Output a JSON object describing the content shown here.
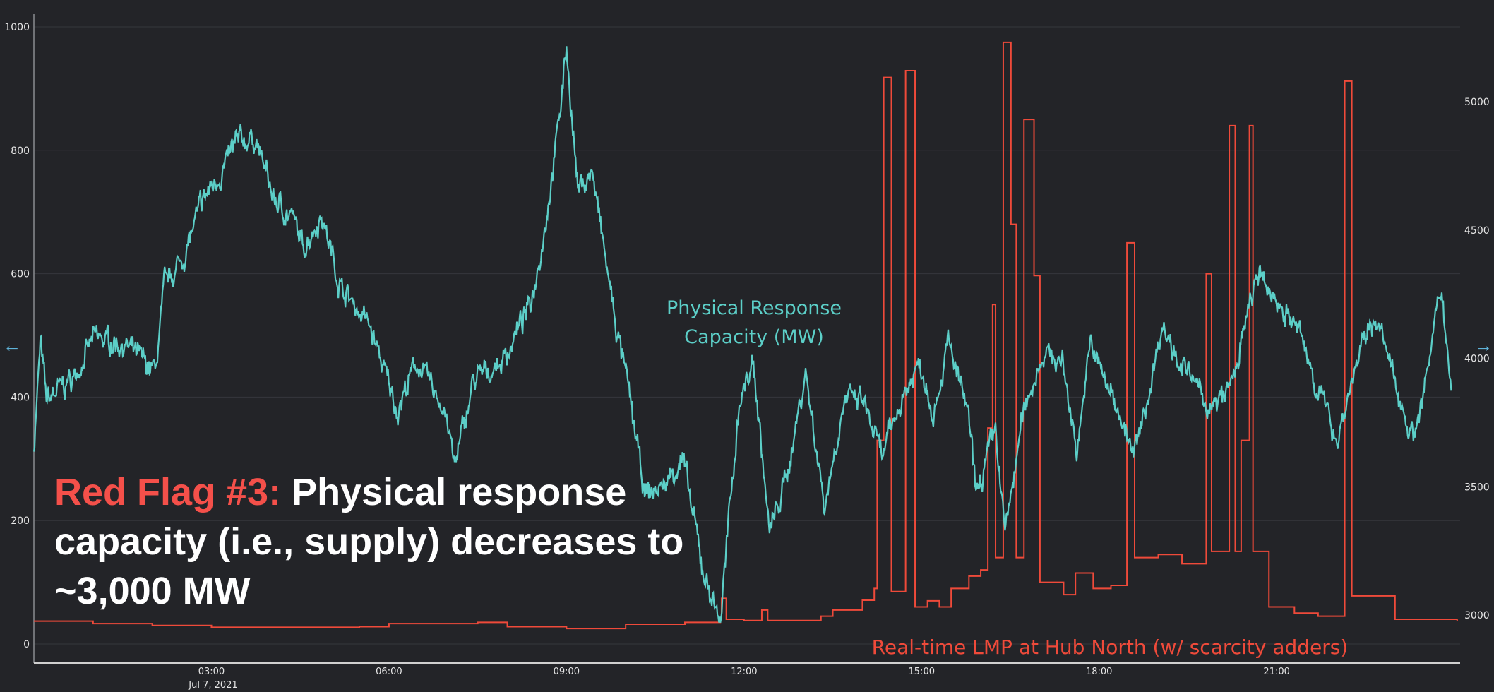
{
  "chart_data": {
    "type": "line",
    "title": "",
    "xlabel": "",
    "date_label": "Jul 7, 2021",
    "x_range_hours": [
      0,
      24.1
    ],
    "x_ticks": [
      {
        "h": 3,
        "label": "03:00"
      },
      {
        "h": 6,
        "label": "06:00"
      },
      {
        "h": 9,
        "label": "09:00"
      },
      {
        "h": 12,
        "label": "12:00"
      },
      {
        "h": 15,
        "label": "15:00"
      },
      {
        "h": 18,
        "label": "18:00"
      },
      {
        "h": 21,
        "label": "21:00"
      }
    ],
    "y_left": {
      "range": [
        0,
        1000
      ],
      "ticks": [
        "0",
        "200",
        "400",
        "600",
        "800",
        "1000"
      ],
      "tick_values": [
        0,
        200,
        400,
        600,
        800,
        1000
      ]
    },
    "y_right": {
      "range": [
        2880,
        5350
      ],
      "ticks": [
        "3000",
        "3500",
        "4000",
        "4500",
        "5000"
      ],
      "tick_values": [
        3000,
        3500,
        4000,
        4500,
        5000
      ]
    },
    "grid": true,
    "series": [
      {
        "name": "Physical Response Capacity (MW)",
        "axis": "right",
        "color": "#5ccfc8",
        "points": [
          [
            0,
            3650
          ],
          [
            0.11,
            4059
          ],
          [
            0.21,
            3836
          ],
          [
            0.69,
            3929
          ],
          [
            1.01,
            4078
          ],
          [
            1.49,
            4059
          ],
          [
            2.05,
            3948
          ],
          [
            2.21,
            4282
          ],
          [
            2.53,
            4394
          ],
          [
            2.86,
            4617
          ],
          [
            3.18,
            4728
          ],
          [
            3.42,
            4840
          ],
          [
            3.74,
            4859
          ],
          [
            4.06,
            4617
          ],
          [
            4.38,
            4543
          ],
          [
            4.54,
            4431
          ],
          [
            4.86,
            4561
          ],
          [
            5.18,
            4282
          ],
          [
            5.66,
            4134
          ],
          [
            6.14,
            3799
          ],
          [
            6.47,
            3985
          ],
          [
            6.95,
            3799
          ],
          [
            7.11,
            3576
          ],
          [
            7.43,
            3911
          ],
          [
            7.91,
            3985
          ],
          [
            8.39,
            4208
          ],
          [
            8.63,
            4505
          ],
          [
            8.87,
            4914
          ],
          [
            9.0,
            5219
          ],
          [
            9.19,
            4654
          ],
          [
            9.43,
            4728
          ],
          [
            9.83,
            4134
          ],
          [
            10.08,
            3836
          ],
          [
            10.32,
            3465
          ],
          [
            10.64,
            3502
          ],
          [
            10.96,
            3613
          ],
          [
            11.31,
            3167
          ],
          [
            11.6,
            2981
          ],
          [
            11.92,
            3836
          ],
          [
            12.16,
            3985
          ],
          [
            12.43,
            3316
          ],
          [
            12.72,
            3539
          ],
          [
            13.04,
            3948
          ],
          [
            13.36,
            3427
          ],
          [
            13.69,
            3836
          ],
          [
            14.01,
            3836
          ],
          [
            14.33,
            3613
          ],
          [
            14.65,
            3836
          ],
          [
            14.97,
            3985
          ],
          [
            15.21,
            3799
          ],
          [
            15.45,
            4059
          ],
          [
            15.77,
            3799
          ],
          [
            15.93,
            3465
          ],
          [
            16.25,
            3725
          ],
          [
            16.41,
            3316
          ],
          [
            16.73,
            3799
          ],
          [
            17.05,
            4022
          ],
          [
            17.38,
            3985
          ],
          [
            17.62,
            3650
          ],
          [
            17.86,
            4059
          ],
          [
            18.1,
            3911
          ],
          [
            18.34,
            3799
          ],
          [
            18.58,
            3613
          ],
          [
            18.82,
            3836
          ],
          [
            19.06,
            4134
          ],
          [
            19.38,
            3985
          ],
          [
            19.78,
            3836
          ],
          [
            19.94,
            3799
          ],
          [
            20.26,
            3911
          ],
          [
            20.66,
            4320
          ],
          [
            21.07,
            4208
          ],
          [
            21.39,
            4097
          ],
          [
            21.71,
            3874
          ],
          [
            22.03,
            3688
          ],
          [
            22.35,
            3985
          ],
          [
            22.67,
            4171
          ],
          [
            22.99,
            3911
          ],
          [
            23.31,
            3688
          ],
          [
            23.55,
            3948
          ],
          [
            23.79,
            4282
          ],
          [
            23.95,
            3874
          ]
        ]
      },
      {
        "name": "Real-time LMP at Hub North (w/ scarcity adders)",
        "axis": "left",
        "color": "#ef4a3a",
        "step": true,
        "points": [
          [
            0,
            37
          ],
          [
            1,
            33
          ],
          [
            2,
            30
          ],
          [
            3,
            27
          ],
          [
            5.5,
            28
          ],
          [
            6,
            33
          ],
          [
            7.5,
            35
          ],
          [
            8,
            28
          ],
          [
            9,
            25
          ],
          [
            10,
            32
          ],
          [
            11,
            35
          ],
          [
            11.6,
            40
          ],
          [
            11.62,
            74
          ],
          [
            11.7,
            40
          ],
          [
            12,
            38
          ],
          [
            12.3,
            55
          ],
          [
            12.4,
            38
          ],
          [
            13.3,
            45
          ],
          [
            13.5,
            55
          ],
          [
            14,
            71
          ],
          [
            14.2,
            90
          ],
          [
            14.25,
            330
          ],
          [
            14.36,
            918
          ],
          [
            14.49,
            85
          ],
          [
            14.73,
            929
          ],
          [
            14.89,
            60
          ],
          [
            15.1,
            70
          ],
          [
            15.3,
            60
          ],
          [
            15.5,
            90
          ],
          [
            15.8,
            110
          ],
          [
            16.0,
            120
          ],
          [
            16.12,
            350
          ],
          [
            16.2,
            550
          ],
          [
            16.25,
            140
          ],
          [
            16.38,
            975
          ],
          [
            16.51,
            680
          ],
          [
            16.6,
            140
          ],
          [
            16.73,
            850
          ],
          [
            16.9,
            597
          ],
          [
            17.0,
            100
          ],
          [
            17.4,
            80
          ],
          [
            17.6,
            115
          ],
          [
            17.9,
            90
          ],
          [
            18.2,
            95
          ],
          [
            18.47,
            650
          ],
          [
            18.6,
            140
          ],
          [
            19.0,
            145
          ],
          [
            19.4,
            130
          ],
          [
            19.81,
            600
          ],
          [
            19.9,
            150
          ],
          [
            20.2,
            840
          ],
          [
            20.3,
            150
          ],
          [
            20.4,
            330
          ],
          [
            20.54,
            840
          ],
          [
            20.6,
            150
          ],
          [
            20.87,
            60
          ],
          [
            21.3,
            50
          ],
          [
            21.7,
            45
          ],
          [
            22.15,
            912
          ],
          [
            22.27,
            78
          ],
          [
            23.0,
            40
          ],
          [
            24.05,
            37
          ]
        ]
      }
    ],
    "annotations": {
      "capacity_label_line1": "Physical Response",
      "capacity_label_line2": "Capacity (MW)",
      "lmp_label": "Real-time LMP at Hub North (w/ scarcity adders)"
    }
  },
  "callout": {
    "prefix": "Red Flag #3:",
    "line1": " Physical response",
    "line2": "capacity (i.e., supply) decreases to",
    "line3": "~3,000 MW"
  },
  "arrows": {
    "left": "←",
    "right": "→"
  }
}
